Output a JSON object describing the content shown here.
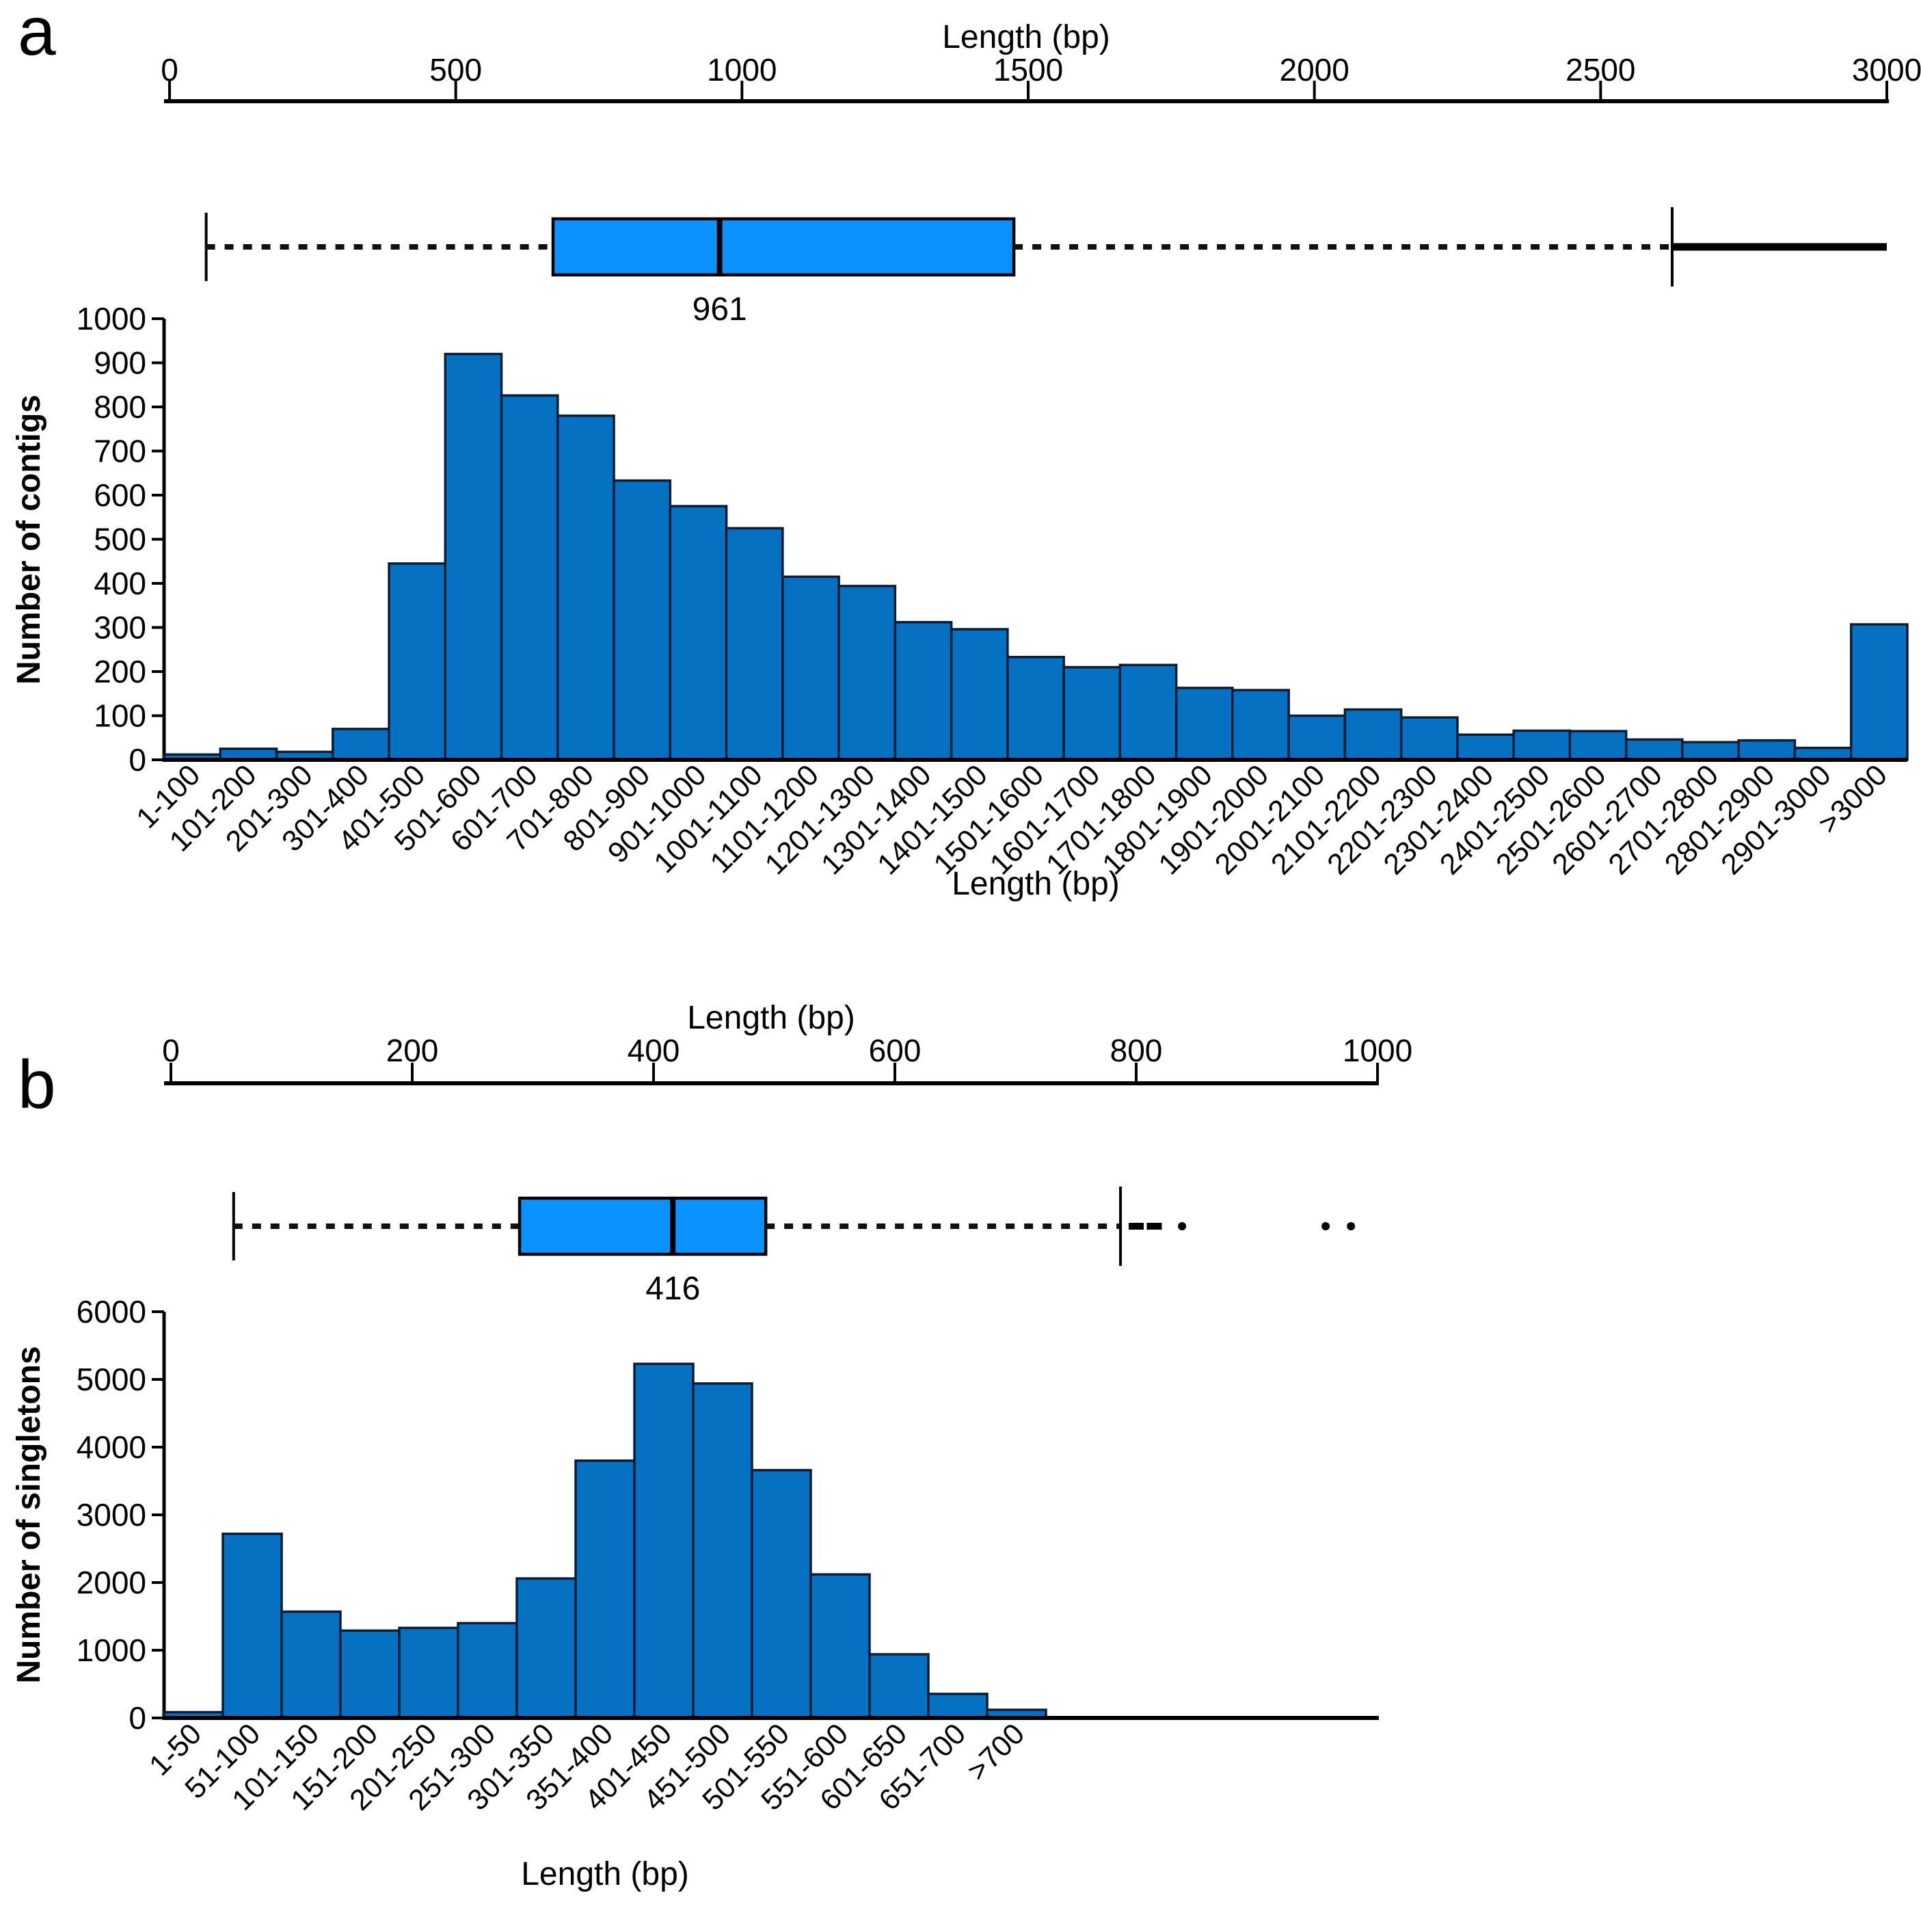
{
  "figure_title": "",
  "chart_data": [
    {
      "panel_label": "a",
      "type": "bar",
      "title": "Length (bp)",
      "xlabel": "Length (bp)",
      "ylabel": "Number of contigs",
      "ylim": [
        0,
        1000
      ],
      "ytick_step": 100,
      "grid": false,
      "legend": "none",
      "top_axis": {
        "title": "Length (bp)",
        "min": 0,
        "max": 3000,
        "ticks": [
          0,
          500,
          1000,
          1500,
          2000,
          2500,
          3000
        ]
      },
      "boxplot": {
        "whisker_low": 64,
        "q1": 670,
        "median": 961,
        "q3": 1475,
        "whisker_high": 2625,
        "outlier_line_end": 3000,
        "median_label": "961"
      },
      "categories": [
        "1-100",
        "101-200",
        "201-300",
        "301-400",
        "401-500",
        "501-600",
        "601-700",
        "701-800",
        "801-900",
        "901-1000",
        "1001-1100",
        "1101-1200",
        "1201-1300",
        "1301-1400",
        "1401-1500",
        "1501-1600",
        "1601-1700",
        "1701-1800",
        "1801-1900",
        "1901-2000",
        "2001-2100",
        "2101-2200",
        "2201-2300",
        "2301-2400",
        "2401-2500",
        "2501-2600",
        "2601-2700",
        "2701-2800",
        "2801-2900",
        "2901-3000",
        ">3000"
      ],
      "values": [
        12,
        25,
        18,
        70,
        445,
        920,
        826,
        780,
        633,
        575,
        525,
        415,
        394,
        312,
        296,
        233,
        210,
        215,
        163,
        158,
        100,
        114,
        96,
        57,
        66,
        65,
        46,
        40,
        44,
        27,
        307
      ]
    },
    {
      "panel_label": "b",
      "type": "bar",
      "title": "Length (bp)",
      "xlabel": "Length (bp)",
      "ylabel": "Number of singletons",
      "ylim": [
        0,
        6000
      ],
      "ytick_step": 1000,
      "grid": false,
      "legend": "none",
      "top_axis": {
        "title": "Length (bp)",
        "min": 0,
        "max": 1000,
        "ticks": [
          0,
          200,
          400,
          600,
          800,
          1000
        ]
      },
      "boxplot": {
        "whisker_low": 52,
        "q1": 289,
        "median": 416,
        "q3": 493,
        "whisker_high": 787,
        "outliers_dash": [
          800,
          815
        ],
        "outliers_dot": [
          838,
          957,
          978
        ],
        "median_label": "416"
      },
      "categories": [
        "1-50",
        "51-100",
        "101-150",
        "151-200",
        "201-250",
        "251-300",
        "301-350",
        "351-400",
        "401-450",
        "451-500",
        "501-550",
        "551-600",
        "601-650",
        "651-700",
        ">700"
      ],
      "values": [
        85,
        2720,
        1570,
        1290,
        1330,
        1400,
        2060,
        3800,
        5230,
        4940,
        3660,
        2120,
        940,
        355,
        120
      ]
    }
  ],
  "colors": {
    "bar_fill": "#0671c2",
    "bar_stroke": "#0a1d33",
    "box_fill": "#0c92ff",
    "axis": "#000000"
  }
}
